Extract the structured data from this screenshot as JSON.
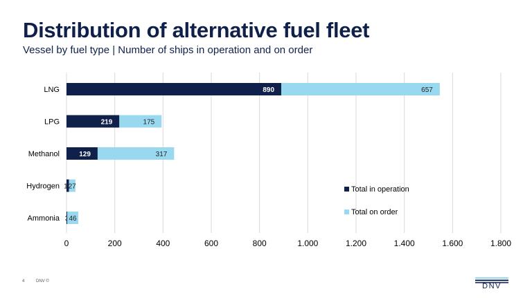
{
  "header": {
    "title": "Distribution of alternative fuel fleet",
    "subtitle": "Vessel by fuel type | Number of ships in operation and on order"
  },
  "footer": {
    "page_number": "4",
    "copyright": "DNV ©",
    "logo_text": "DNV"
  },
  "colors": {
    "title": "#0f204b",
    "in_operation": "#0f204b",
    "on_order": "#99d9f0",
    "gridline": "#d9d9d9",
    "logo_bars": [
      "#99d9f0",
      "#0f204b"
    ]
  },
  "chart_data": {
    "type": "bar",
    "orientation": "horizontal",
    "stacked": true,
    "categories": [
      "LNG",
      "LPG",
      "Methanol",
      "Hydrogen",
      "Ammonia"
    ],
    "series": [
      {
        "name": "Total in operation",
        "values": [
          890,
          219,
          129,
          10,
          3
        ],
        "color": "#0f204b"
      },
      {
        "name": "Total on order",
        "values": [
          657,
          175,
          317,
          27,
          46
        ],
        "color": "#99d9f0"
      }
    ],
    "data_labels": [
      [
        "890",
        "219",
        "129",
        "10",
        "3"
      ],
      [
        "657",
        "175",
        "317",
        "27",
        "46"
      ]
    ],
    "xlim": [
      0,
      1800
    ],
    "xticks": [
      0,
      200,
      400,
      600,
      800,
      1000,
      1200,
      1400,
      1600,
      1800
    ],
    "xtick_labels": [
      "0",
      "200",
      "400",
      "600",
      "800",
      "1.000",
      "1.200",
      "1.400",
      "1.600",
      "1.800"
    ],
    "grid": "vertical",
    "legend_position": "right"
  }
}
